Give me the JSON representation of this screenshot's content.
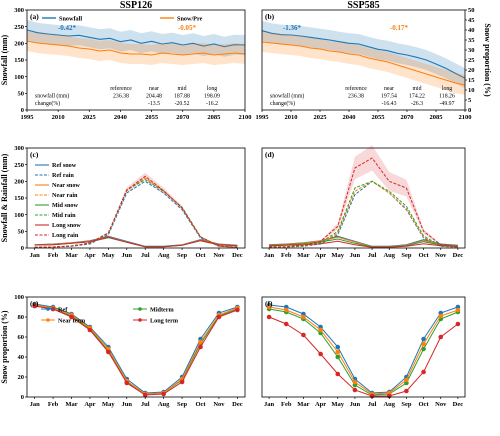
{
  "chart_data": [
    {
      "type": "line",
      "panel": "(a)",
      "title": "SSP126",
      "ylabel": "Snowfall (mm)",
      "y2label": "",
      "ylim": [
        0,
        300
      ],
      "y2lim": [
        0,
        50
      ],
      "yticks": [
        0,
        50,
        100,
        150,
        200,
        250,
        300
      ],
      "y2ticks": [],
      "xlim": [
        1995,
        2100
      ],
      "xticks": [
        1995,
        2010,
        2025,
        2040,
        2055,
        2070,
        2085,
        2100
      ],
      "legend": [
        "Snowfall",
        "Snow/Pre"
      ],
      "trends": [
        "-0.42*",
        "-0.05*"
      ],
      "table": {
        "headers": [
          "reference",
          "near",
          "mid",
          "long"
        ],
        "rows": [
          {
            "label": "snowfall (mm)",
            "values": [
              "236.38",
              "204.48",
              "187.88",
              "198.09"
            ]
          },
          {
            "label": "change(%)",
            "values": [
              "",
              "-13.5",
              "-20.52",
              "-16.2"
            ]
          }
        ]
      },
      "series": [
        {
          "name": "Snowfall",
          "color": "#1f77b4",
          "axis": "left",
          "points": [
            [
              1995,
              240
            ],
            [
              2000,
              232
            ],
            [
              2005,
              228
            ],
            [
              2010,
              225
            ],
            [
              2015,
              222
            ],
            [
              2020,
              224
            ],
            [
              2025,
              218
            ],
            [
              2030,
              212
            ],
            [
              2035,
              215
            ],
            [
              2040,
              205
            ],
            [
              2045,
              210
            ],
            [
              2050,
              200
            ],
            [
              2055,
              206
            ],
            [
              2060,
              198
            ],
            [
              2065,
              202
            ],
            [
              2070,
              195
            ],
            [
              2075,
              200
            ],
            [
              2080,
              192
            ],
            [
              2085,
              198
            ],
            [
              2090,
              190
            ],
            [
              2095,
              196
            ],
            [
              2100,
              195
            ]
          ],
          "band": [
            30,
            30
          ]
        },
        {
          "name": "Snow/Pre",
          "color": "#ff7f0e",
          "axis": "right",
          "points": [
            [
              1995,
              34.5
            ],
            [
              2000,
              33.5
            ],
            [
              2005,
              33
            ],
            [
              2010,
              32.5
            ],
            [
              2015,
              32
            ],
            [
              2020,
              31
            ],
            [
              2025,
              30.5
            ],
            [
              2030,
              29.5
            ],
            [
              2035,
              30
            ],
            [
              2040,
              28.5
            ],
            [
              2045,
              28
            ],
            [
              2050,
              28
            ],
            [
              2055,
              27.5
            ],
            [
              2060,
              28.5
            ],
            [
              2065,
              28
            ],
            [
              2070,
              27.5
            ],
            [
              2075,
              28
            ],
            [
              2080,
              28.5
            ],
            [
              2085,
              27.5
            ],
            [
              2090,
              28
            ],
            [
              2095,
              28.5
            ],
            [
              2100,
              28
            ]
          ],
          "band": [
            5,
            5
          ]
        }
      ]
    },
    {
      "type": "line",
      "panel": "(b)",
      "title": "SSP585",
      "ylabel": "",
      "y2label": "Snow proportion (%)",
      "ylim": [
        0,
        300
      ],
      "y2lim": [
        0,
        50
      ],
      "yticks": [],
      "y2ticks": [
        0,
        5,
        10,
        15,
        20,
        25,
        30,
        35,
        40,
        45,
        50
      ],
      "xlim": [
        1995,
        2100
      ],
      "xticks": [
        1995,
        2010,
        2025,
        2040,
        2055,
        2070,
        2085,
        2100
      ],
      "legend": [],
      "trends": [
        "-1.36*",
        "-0.17*"
      ],
      "table": {
        "headers": [
          "reference",
          "near",
          "mid",
          "long"
        ],
        "rows": [
          {
            "label": "snowfall (mm)",
            "values": [
              "236.38",
              "197.54",
              "174.22",
              "118.26"
            ]
          },
          {
            "label": "change(%)",
            "values": [
              "",
              "-16.43",
              "-26.3",
              "-49.97"
            ]
          }
        ]
      },
      "series": [
        {
          "name": "Snowfall",
          "color": "#1f77b4",
          "axis": "left",
          "points": [
            [
              1995,
              238
            ],
            [
              2000,
              230
            ],
            [
              2005,
              226
            ],
            [
              2010,
              225
            ],
            [
              2015,
              222
            ],
            [
              2020,
              218
            ],
            [
              2025,
              214
            ],
            [
              2030,
              210
            ],
            [
              2035,
              205
            ],
            [
              2040,
              200
            ],
            [
              2045,
              198
            ],
            [
              2050,
              190
            ],
            [
              2055,
              182
            ],
            [
              2060,
              178
            ],
            [
              2065,
              170
            ],
            [
              2070,
              165
            ],
            [
              2075,
              158
            ],
            [
              2080,
              150
            ],
            [
              2085,
              138
            ],
            [
              2090,
              125
            ],
            [
              2095,
              110
            ],
            [
              2100,
              95
            ]
          ],
          "band": [
            30,
            30
          ]
        },
        {
          "name": "Snow/Pre",
          "color": "#ff7f0e",
          "axis": "right",
          "points": [
            [
              1995,
              34
            ],
            [
              2000,
              33.5
            ],
            [
              2005,
              33
            ],
            [
              2010,
              32.5
            ],
            [
              2015,
              32
            ],
            [
              2020,
              31
            ],
            [
              2025,
              30.5
            ],
            [
              2030,
              29.5
            ],
            [
              2035,
              29
            ],
            [
              2040,
              28
            ],
            [
              2045,
              27.5
            ],
            [
              2050,
              26
            ],
            [
              2055,
              25
            ],
            [
              2060,
              24
            ],
            [
              2065,
              22.5
            ],
            [
              2070,
              21
            ],
            [
              2075,
              19.5
            ],
            [
              2080,
              18
            ],
            [
              2085,
              16.5
            ],
            [
              2090,
              15
            ],
            [
              2095,
              13.5
            ],
            [
              2100,
              12.5
            ]
          ],
          "band": [
            5,
            5
          ]
        }
      ]
    },
    {
      "type": "line",
      "panel": "(c)",
      "title": "",
      "ylabel": "Snowfall & Rainfall (mm)",
      "ylim": [
        0,
        300
      ],
      "yticks": [
        0,
        50,
        100,
        150,
        200,
        250,
        300
      ],
      "categories": [
        "Jan",
        "Feb",
        "Mar",
        "Apr",
        "May",
        "Jun",
        "Jul",
        "Aug",
        "Sep",
        "Oct",
        "Nov",
        "Dec"
      ],
      "legend": [
        "Ref snow",
        "Ref rain",
        "Near snow",
        "Near rain",
        "Mid snow",
        "Mid rain",
        "Long snow",
        "Long rain"
      ],
      "series": [
        {
          "name": "Ref snow",
          "color": "#1f77b4",
          "dash": false,
          "values": [
            10,
            12,
            16,
            22,
            35,
            20,
            5,
            5,
            10,
            25,
            12,
            8
          ]
        },
        {
          "name": "Ref rain",
          "color": "#1f77b4",
          "dash": true,
          "values": [
            2,
            3,
            5,
            12,
            40,
            165,
            200,
            165,
            115,
            30,
            5,
            2
          ]
        },
        {
          "name": "Near snow",
          "color": "#ff7f0e",
          "dash": false,
          "values": [
            9,
            11,
            15,
            20,
            33,
            18,
            4,
            4,
            9,
            23,
            11,
            7
          ]
        },
        {
          "name": "Near rain",
          "color": "#ff7f0e",
          "dash": true,
          "values": [
            2,
            3,
            6,
            14,
            44,
            172,
            210,
            172,
            120,
            33,
            6,
            2
          ]
        },
        {
          "name": "Mid snow",
          "color": "#2ca02c",
          "dash": false,
          "values": [
            9,
            10,
            14,
            19,
            31,
            17,
            4,
            4,
            8,
            22,
            10,
            7
          ]
        },
        {
          "name": "Mid rain",
          "color": "#2ca02c",
          "dash": true,
          "values": [
            2,
            3,
            6,
            15,
            46,
            175,
            205,
            170,
            122,
            34,
            6,
            2
          ]
        },
        {
          "name": "Long snow",
          "color": "#d62728",
          "dash": false,
          "values": [
            9,
            10,
            14,
            19,
            32,
            17,
            4,
            4,
            8,
            22,
            10,
            7
          ]
        },
        {
          "name": "Long rain",
          "color": "#d62728",
          "dash": true,
          "values": [
            2,
            3,
            6,
            15,
            45,
            174,
            215,
            172,
            120,
            33,
            6,
            2
          ]
        }
      ]
    },
    {
      "type": "line",
      "panel": "(d)",
      "title": "",
      "ylabel": "",
      "ylim": [
        0,
        300
      ],
      "yticks": [],
      "categories": [
        "Jan",
        "Feb",
        "Mar",
        "Apr",
        "May",
        "Jun",
        "Jul",
        "Aug",
        "Sep",
        "Oct",
        "Nov",
        "Dec"
      ],
      "legend": [],
      "series": [
        {
          "name": "Ref snow",
          "color": "#1f77b4",
          "dash": false,
          "values": [
            10,
            12,
            16,
            22,
            35,
            20,
            5,
            5,
            10,
            25,
            12,
            8
          ]
        },
        {
          "name": "Ref rain",
          "color": "#1f77b4",
          "dash": true,
          "values": [
            2,
            3,
            5,
            12,
            40,
            160,
            200,
            165,
            115,
            30,
            5,
            2
          ]
        },
        {
          "name": "Near snow",
          "color": "#ff7f0e",
          "dash": false,
          "values": [
            9,
            11,
            15,
            21,
            32,
            18,
            4,
            4,
            8,
            22,
            10,
            7
          ]
        },
        {
          "name": "Near rain",
          "color": "#ff7f0e",
          "dash": true,
          "values": [
            2,
            3,
            6,
            14,
            45,
            170,
            200,
            165,
            118,
            32,
            6,
            2
          ]
        },
        {
          "name": "Mid snow",
          "color": "#2ca02c",
          "dash": false,
          "values": [
            8,
            10,
            13,
            18,
            27,
            14,
            3,
            3,
            7,
            19,
            9,
            6
          ]
        },
        {
          "name": "Mid rain",
          "color": "#2ca02c",
          "dash": true,
          "values": [
            2,
            3,
            7,
            16,
            50,
            180,
            200,
            170,
            125,
            36,
            7,
            3
          ]
        },
        {
          "name": "Long snow",
          "color": "#d62728",
          "dash": false,
          "values": [
            6,
            8,
            10,
            13,
            20,
            10,
            2,
            2,
            5,
            13,
            7,
            5
          ]
        },
        {
          "name": "Long rain",
          "color": "#d62728",
          "dash": true,
          "values": [
            3,
            4,
            8,
            20,
            65,
            240,
            270,
            200,
            180,
            50,
            10,
            4
          ]
        }
      ]
    },
    {
      "type": "line",
      "panel": "(e)",
      "title": "",
      "ylabel": "Snow proportion (%)",
      "ylim": [
        0,
        100
      ],
      "yticks": [
        0,
        20,
        40,
        60,
        80,
        100
      ],
      "categories": [
        "Jan",
        "Feb",
        "Mar",
        "Apr",
        "May",
        "Jun",
        "Jul",
        "Aug",
        "Sep",
        "Oct",
        "Nov",
        "Dec"
      ],
      "legend": [
        "Ref",
        "Midterm",
        "Near term",
        "Long term"
      ],
      "series": [
        {
          "name": "Ref",
          "color": "#1f77b4",
          "values": [
            93,
            90,
            83,
            70,
            50,
            18,
            4,
            5,
            20,
            58,
            84,
            90
          ]
        },
        {
          "name": "Midterm",
          "color": "#2ca02c",
          "values": [
            91,
            88,
            81,
            68,
            46,
            15,
            3,
            4,
            17,
            53,
            81,
            88
          ]
        },
        {
          "name": "Near term",
          "color": "#ff7f0e",
          "values": [
            92,
            89,
            82,
            69,
            48,
            16,
            3,
            4,
            18,
            55,
            82,
            89
          ]
        },
        {
          "name": "Long term",
          "color": "#d62728",
          "values": [
            91,
            88,
            80,
            67,
            45,
            14,
            2,
            3,
            15,
            50,
            80,
            87
          ]
        }
      ]
    },
    {
      "type": "line",
      "panel": "(f)",
      "title": "",
      "ylabel": "",
      "ylim": [
        0,
        100
      ],
      "yticks": [],
      "categories": [
        "Jan",
        "Feb",
        "Mar",
        "Apr",
        "May",
        "Jun",
        "Jul",
        "Aug",
        "Sep",
        "Oct",
        "Nov",
        "Dec"
      ],
      "legend": [],
      "series": [
        {
          "name": "Ref",
          "color": "#1f77b4",
          "values": [
            92,
            90,
            83,
            70,
            50,
            18,
            4,
            5,
            20,
            58,
            84,
            90
          ]
        },
        {
          "name": "Midterm",
          "color": "#2ca02c",
          "values": [
            88,
            85,
            78,
            64,
            40,
            12,
            2,
            3,
            14,
            48,
            78,
            85
          ]
        },
        {
          "name": "Near term",
          "color": "#ff7f0e",
          "values": [
            90,
            87,
            80,
            67,
            45,
            15,
            3,
            4,
            17,
            53,
            81,
            87
          ]
        },
        {
          "name": "Long term",
          "color": "#d62728",
          "values": [
            80,
            73,
            62,
            43,
            23,
            7,
            1,
            1,
            6,
            25,
            60,
            73
          ]
        }
      ]
    }
  ]
}
